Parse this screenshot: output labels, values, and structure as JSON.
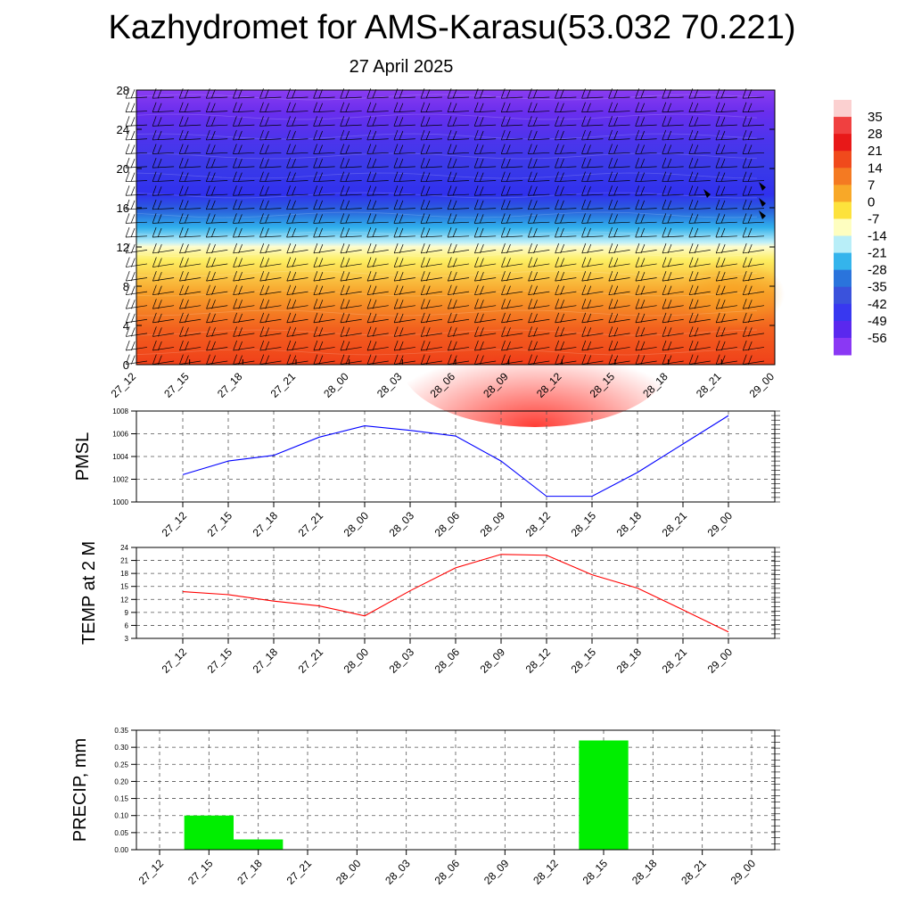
{
  "title": "Kazhydromet for AMS-Karasu(53.032 70.221)",
  "subtitle": "27 April 2025",
  "chart_data": [
    {
      "type": "heatmap",
      "name": "temperature-height-section",
      "x_tick_labels": [
        "27_12",
        "27_15",
        "27_18",
        "27_21",
        "28_00",
        "28_03",
        "28_06",
        "28_09",
        "28_12",
        "28_15",
        "28_18",
        "28_21",
        "29_00"
      ],
      "y_tick_labels": [
        "0",
        "4",
        "8",
        "12",
        "16",
        "20",
        "24",
        "28"
      ],
      "ylim": [
        0,
        28
      ],
      "colorbar_labels": [
        "35",
        "28",
        "21",
        "14",
        "7",
        "0",
        "-7",
        "-14",
        "-21",
        "-28",
        "-35",
        "-42",
        "-49",
        "-56"
      ],
      "colorbar_colors": [
        "#fbd0d0",
        "#f04040",
        "#e81818",
        "#f04a1c",
        "#f47a22",
        "#f8a828",
        "#fde23c",
        "#fefec0",
        "#b8eef8",
        "#34b4ec",
        "#2a74dc",
        "#3a52dc",
        "#3838f0",
        "#5a28ee",
        "#8a38f4"
      ],
      "wind_barbs": true
    },
    {
      "type": "line",
      "ylabel": "PMSL",
      "categories": [
        "27_12",
        "27_15",
        "27_18",
        "27_21",
        "28_00",
        "28_03",
        "28_06",
        "28_09",
        "28_12",
        "28_15",
        "28_18",
        "28_21",
        "29_00"
      ],
      "values": [
        1002.4,
        1003.6,
        1004.1,
        1005.7,
        1006.7,
        1006.3,
        1005.8,
        1003.6,
        1000.5,
        1000.5,
        1002.6,
        1005.1,
        1007.6
      ],
      "ylim": [
        1000,
        1008
      ],
      "y_ticks": [
        "1000",
        "1002",
        "1004",
        "1006",
        "1008"
      ],
      "grid": true,
      "color": "#0000ff"
    },
    {
      "type": "line",
      "ylabel": "TEMP at 2 M",
      "categories": [
        "27_12",
        "27_15",
        "27_18",
        "27_21",
        "28_00",
        "28_03",
        "28_06",
        "28_09",
        "28_12",
        "28_15",
        "28_18",
        "28_21",
        "29_00"
      ],
      "values": [
        13.8,
        13.1,
        11.6,
        10.5,
        8.2,
        14.0,
        19.3,
        22.4,
        22.2,
        17.7,
        14.6,
        9.6,
        4.5
      ],
      "ylim": [
        3,
        24
      ],
      "y_ticks": [
        "3",
        "6",
        "9",
        "12",
        "15",
        "18",
        "21",
        "24"
      ],
      "grid": true,
      "color": "#ff0000"
    },
    {
      "type": "bar",
      "ylabel": "PRECIP, mm",
      "categories": [
        "27_12",
        "27_15",
        "27_18",
        "27_21",
        "28_00",
        "28_03",
        "28_06",
        "28_09",
        "28_12",
        "28_15",
        "28_18",
        "28_21",
        "29_00"
      ],
      "values": [
        0,
        0.1,
        0.03,
        0,
        0,
        0,
        0,
        0,
        0,
        0.32,
        0,
        0,
        0
      ],
      "ylim": [
        0,
        0.35
      ],
      "y_ticks": [
        "0.00",
        "0.05",
        "0.10",
        "0.15",
        "0.20",
        "0.25",
        "0.30",
        "0.35"
      ],
      "grid": true,
      "color": "#00ee00"
    }
  ]
}
